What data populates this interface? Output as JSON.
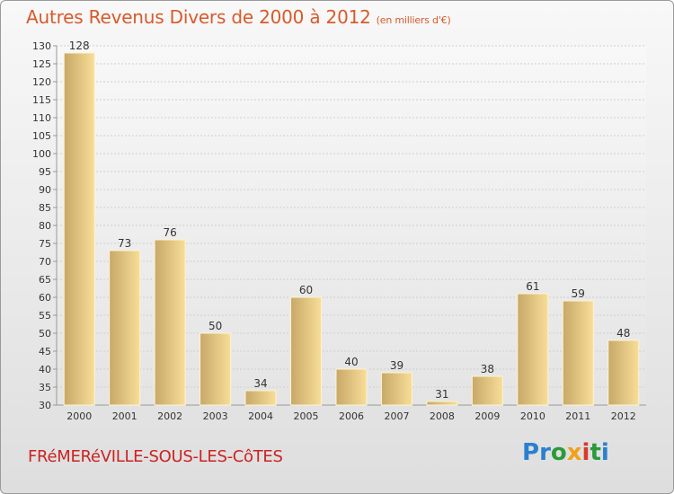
{
  "chart_data": {
    "type": "bar",
    "title": "Autres Revenus Divers de 2000 à 2012",
    "subtitle": "(en milliers d'€)",
    "categories": [
      "2000",
      "2001",
      "2002",
      "2003",
      "2004",
      "2005",
      "2006",
      "2007",
      "2008",
      "2009",
      "2010",
      "2011",
      "2012"
    ],
    "values": [
      128,
      73,
      76,
      50,
      34,
      60,
      40,
      39,
      31,
      38,
      61,
      59,
      48
    ],
    "ylim": [
      30,
      130
    ],
    "yticks": [
      30,
      35,
      40,
      45,
      50,
      55,
      60,
      65,
      70,
      75,
      80,
      85,
      90,
      95,
      100,
      105,
      110,
      115,
      120,
      125,
      130
    ],
    "grid": true,
    "xlabel": "",
    "ylabel": ""
  },
  "footer": {
    "place": "FRéMERéVILLE-SOUS-LES-CôTES",
    "logo_letters": [
      "P",
      "r",
      "o",
      "x",
      "i",
      "t",
      "i"
    ],
    "logo_colors": [
      "#2a7fd0",
      "#2a7fd0",
      "#2a9a3a",
      "#f2a019",
      "#d83a2a",
      "#2a9a3a",
      "#2a7fd0"
    ]
  },
  "colors": {
    "title": "#d85a2a",
    "place": "#cc2222",
    "bar_light": "#f7de98",
    "bar_dark": "#c8a868"
  }
}
